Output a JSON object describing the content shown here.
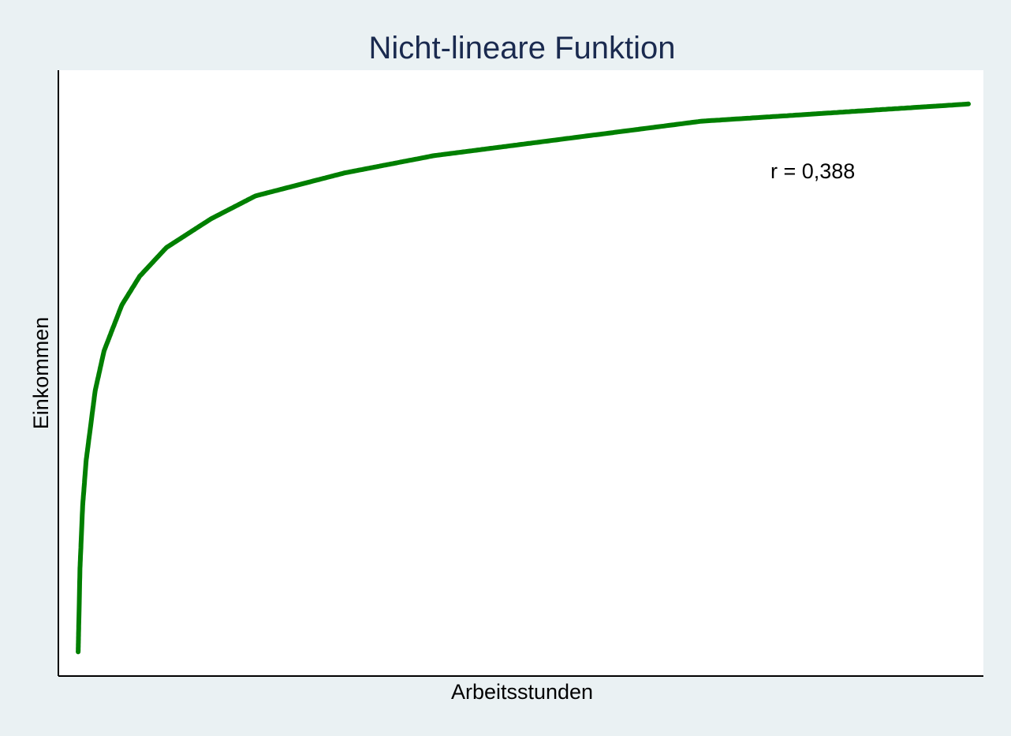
{
  "chart_data": {
    "type": "line",
    "title": "Nicht-lineare Funktion",
    "xlabel": "Arbeitsstunden",
    "ylabel": "Einkommen",
    "annotation": "r = 0,388",
    "x_ticks_shown": false,
    "y_ticks_shown": false,
    "grid": false,
    "xlim": [
      0,
      100
    ],
    "ylim": [
      0,
      1
    ],
    "curve": "logarithmic",
    "series": [
      {
        "color": "#007f00",
        "x": [
          0.1,
          0.3,
          0.6,
          1,
          2,
          3,
          5,
          7,
          10,
          15,
          20,
          30,
          40,
          50,
          60,
          70,
          80,
          90,
          100
        ],
        "y": [
          0.016,
          0.16,
          0.27,
          0.35,
          0.47,
          0.54,
          0.62,
          0.67,
          0.72,
          0.77,
          0.81,
          0.85,
          0.88,
          0.9,
          0.92,
          0.94,
          0.95,
          0.96,
          0.97
        ]
      }
    ],
    "colors": {
      "background": "#eaf1f3",
      "plot_background": "#ffffff",
      "title": "#1a2a4f",
      "axis": "#000000",
      "curve": "#007f00"
    }
  }
}
